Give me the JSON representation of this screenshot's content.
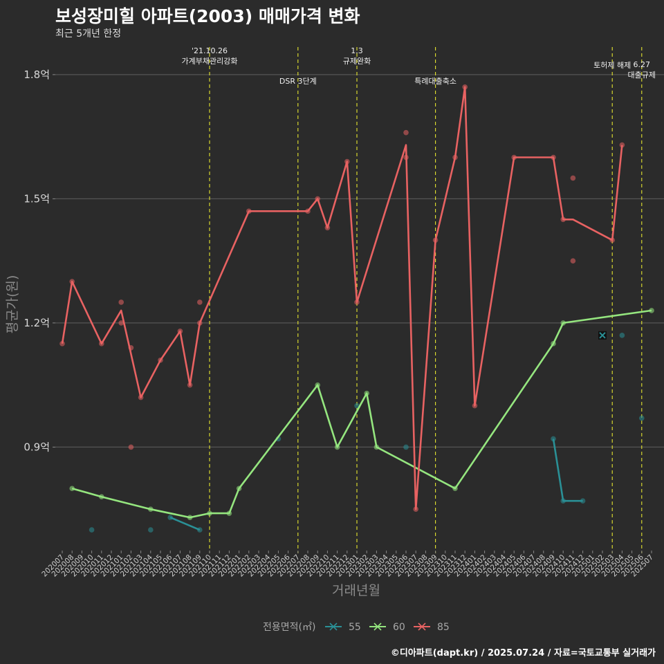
{
  "title": "보성장미힐 아파트(2003) 매매가격 변화",
  "subtitle": "최근 5개년 한정",
  "caption": "©디아파트(dapt.kr) / 2025.07.24 / 자료=국토교통부 실거래가",
  "colors": {
    "background": "#2b2b2b",
    "grid": "#555555",
    "event_line": "#e6e62e",
    "series_55": "#2a9096",
    "series_60": "#95e67f",
    "series_85": "#e86262"
  },
  "chart_data": {
    "type": "line",
    "xlabel": "거래년월",
    "ylabel": "평균가(원)",
    "ylim": [
      0.65,
      1.88
    ],
    "y_ticks": [
      {
        "value": 0.9,
        "label": "0.9억"
      },
      {
        "value": 1.2,
        "label": "1.2억"
      },
      {
        "value": 1.5,
        "label": "1.5억"
      },
      {
        "value": 1.8,
        "label": "1.8억"
      }
    ],
    "x_categories": [
      "202007",
      "202008",
      "202009",
      "202010",
      "202011",
      "202012",
      "202101",
      "202102",
      "202103",
      "202104",
      "202105",
      "202106",
      "202107",
      "202108",
      "202109",
      "202110",
      "202111",
      "202112",
      "202201",
      "202202",
      "202203",
      "202204",
      "202205",
      "202206",
      "202207",
      "202208",
      "202209",
      "202210",
      "202211",
      "202212",
      "202301",
      "202302",
      "202303",
      "202304",
      "202305",
      "202306",
      "202307",
      "202308",
      "202309",
      "202310",
      "202311",
      "202312",
      "202401",
      "202402",
      "202403",
      "202404",
      "202405",
      "202406",
      "202407",
      "202408",
      "202409",
      "202410",
      "202411",
      "202412",
      "202501",
      "202502",
      "202503",
      "202504",
      "202505",
      "202506",
      "202507"
    ],
    "legend_title": "전용면적(㎡)",
    "legend_position": "bottom",
    "events": [
      {
        "x": "202110",
        "lines": [
          "'21.10.26",
          "가계부채관리강화"
        ],
        "level": 1
      },
      {
        "x": "202207",
        "lines": [
          "DSR 3단계"
        ],
        "level": 2
      },
      {
        "x": "202301",
        "lines": [
          "1.3",
          "규제완화"
        ],
        "level": 1
      },
      {
        "x": "202309",
        "lines": [
          "특례대출축소"
        ],
        "level": 2
      },
      {
        "x": "202503",
        "lines": [
          "토허제 해제"
        ],
        "level": 0
      },
      {
        "x": "202506",
        "lines": [
          "6.27",
          "대출규제"
        ],
        "level": 3
      }
    ],
    "series": [
      {
        "name": "55",
        "line": [
          [
            "202106",
            0.73
          ],
          [
            "202109",
            0.7
          ],
          null,
          [
            "202409",
            0.92
          ],
          [
            "202410",
            0.77
          ],
          [
            "202412",
            0.77
          ]
        ],
        "points": [
          [
            "202010",
            0.7
          ],
          [
            "202104",
            0.7
          ],
          [
            "202106",
            0.73
          ],
          [
            "202109",
            0.7
          ],
          [
            "202205",
            0.92
          ],
          [
            "202301",
            1.0
          ],
          [
            "202306",
            0.9
          ],
          [
            "202409",
            0.92
          ],
          [
            "202410",
            0.77
          ],
          [
            "202412",
            0.77
          ],
          [
            "202504",
            1.17
          ],
          [
            "202506",
            0.97
          ]
        ],
        "special_point": [
          "202502",
          1.17
        ]
      },
      {
        "name": "60",
        "line": [
          [
            "202008",
            0.8
          ],
          [
            "202011",
            0.78
          ],
          [
            "202104",
            0.75
          ],
          [
            "202108",
            0.73
          ],
          [
            "202110",
            0.74
          ],
          [
            "202112",
            0.74
          ],
          [
            "202201",
            0.8
          ],
          [
            "202209",
            1.05
          ],
          [
            "202211",
            0.9
          ],
          [
            "202302",
            1.03
          ],
          [
            "202303",
            0.9
          ],
          [
            "202311",
            0.8
          ],
          [
            "202409",
            1.15
          ],
          [
            "202410",
            1.2
          ],
          [
            "202507",
            1.23
          ]
        ],
        "points": [
          [
            "202008",
            0.8
          ],
          [
            "202011",
            0.78
          ],
          [
            "202104",
            0.75
          ],
          [
            "202108",
            0.73
          ],
          [
            "202110",
            0.74
          ],
          [
            "202112",
            0.74
          ],
          [
            "202201",
            0.8
          ],
          [
            "202209",
            1.05
          ],
          [
            "202211",
            0.9
          ],
          [
            "202302",
            1.03
          ],
          [
            "202303",
            0.9
          ],
          [
            "202311",
            0.8
          ],
          [
            "202409",
            1.15
          ],
          [
            "202410",
            1.2
          ],
          [
            "202507",
            1.23
          ]
        ]
      },
      {
        "name": "85",
        "line": [
          [
            "202007",
            1.15
          ],
          [
            "202008",
            1.3
          ],
          [
            "202011",
            1.15
          ],
          [
            "202101",
            1.23
          ],
          [
            "202103",
            1.02
          ],
          [
            "202105",
            1.11
          ],
          [
            "202107",
            1.18
          ],
          [
            "202108",
            1.05
          ],
          [
            "202109",
            1.2
          ],
          [
            "202202",
            1.47
          ],
          [
            "202208",
            1.47
          ],
          [
            "202209",
            1.5
          ],
          [
            "202210",
            1.43
          ],
          [
            "202212",
            1.59
          ],
          [
            "202301",
            1.25
          ],
          [
            "202306",
            1.63
          ],
          [
            "202307",
            0.75
          ],
          [
            "202309",
            1.4
          ],
          [
            "202311",
            1.6
          ],
          [
            "202312",
            1.77
          ],
          [
            "202401",
            1.0
          ],
          [
            "202405",
            1.6
          ],
          [
            "202409",
            1.6
          ],
          [
            "202410",
            1.45
          ],
          [
            "202411",
            1.45
          ],
          [
            "202503",
            1.4
          ],
          [
            "202504",
            1.63
          ]
        ],
        "points": [
          [
            "202007",
            1.15
          ],
          [
            "202008",
            1.3
          ],
          [
            "202011",
            1.15
          ],
          [
            "202101",
            1.25
          ],
          [
            "202101",
            1.2
          ],
          [
            "202102",
            1.14
          ],
          [
            "202102",
            0.9
          ],
          [
            "202103",
            1.02
          ],
          [
            "202105",
            1.11
          ],
          [
            "202107",
            1.18
          ],
          [
            "202108",
            1.05
          ],
          [
            "202109",
            1.25
          ],
          [
            "202109",
            1.2
          ],
          [
            "202202",
            1.47
          ],
          [
            "202208",
            1.47
          ],
          [
            "202209",
            1.5
          ],
          [
            "202210",
            1.43
          ],
          [
            "202212",
            1.59
          ],
          [
            "202301",
            1.25
          ],
          [
            "202306",
            1.66
          ],
          [
            "202306",
            1.6
          ],
          [
            "202307",
            0.75
          ],
          [
            "202309",
            1.4
          ],
          [
            "202311",
            1.6
          ],
          [
            "202312",
            1.77
          ],
          [
            "202401",
            1.0
          ],
          [
            "202405",
            1.6
          ],
          [
            "202409",
            1.6
          ],
          [
            "202410",
            1.45
          ],
          [
            "202411",
            1.55
          ],
          [
            "202411",
            1.35
          ],
          [
            "202503",
            1.4
          ],
          [
            "202504",
            1.63
          ]
        ]
      }
    ]
  }
}
